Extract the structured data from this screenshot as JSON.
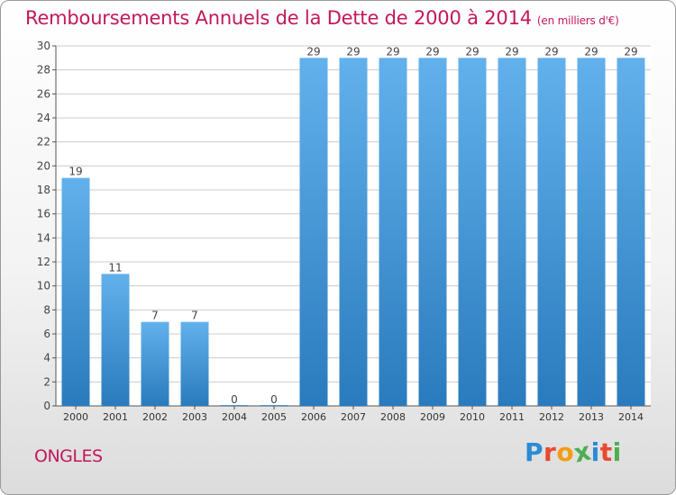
{
  "header": {
    "title": "Remboursements Annuels de la Dette de 2000 à 2014",
    "unit": "(en milliers d'€)"
  },
  "footer": {
    "town": "ONGLES",
    "brand": "Proxiti"
  },
  "colors": {
    "title": "#c2185b",
    "bar_light": "#62b1ec",
    "bar_dark": "#2a7bbd",
    "grid": "#cccccc"
  },
  "chart_data": {
    "type": "bar",
    "title": "Remboursements Annuels de la Dette de 2000 à 2014",
    "subtitle": "(en milliers d'€)",
    "xlabel": "",
    "ylabel": "",
    "categories": [
      "2000",
      "2001",
      "2002",
      "2003",
      "2004",
      "2005",
      "2006",
      "2007",
      "2008",
      "2009",
      "2010",
      "2011",
      "2012",
      "2013",
      "2014"
    ],
    "values": [
      19,
      11,
      7,
      7,
      0,
      0,
      29,
      29,
      29,
      29,
      29,
      29,
      29,
      29,
      29
    ],
    "ylim": [
      0,
      30
    ],
    "yticks": [
      0,
      2,
      4,
      6,
      8,
      10,
      12,
      14,
      16,
      18,
      20,
      22,
      24,
      26,
      28,
      30
    ],
    "grid": true,
    "data_labels": true
  }
}
